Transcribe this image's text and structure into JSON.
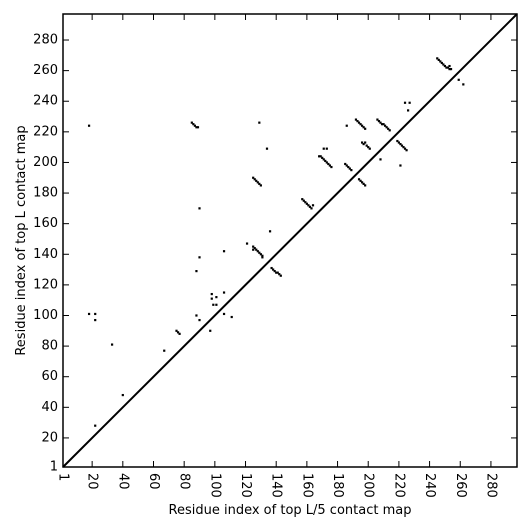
{
  "chart_data": {
    "type": "scatter",
    "xlabel": "Residue index of top L/5 contact map",
    "ylabel": "Residue index of top L contact map",
    "xlim": [
      1,
      297
    ],
    "ylim": [
      1,
      297
    ],
    "x_ticks": [
      1,
      20,
      40,
      60,
      80,
      100,
      120,
      140,
      160,
      180,
      200,
      220,
      240,
      260,
      280
    ],
    "x_tick_labels": [
      "1",
      "20",
      "40",
      "60",
      "80",
      "100",
      "120",
      "140",
      "160",
      "180",
      "200",
      "220",
      "240",
      "260",
      "280"
    ],
    "y_ticks": [
      1,
      20,
      40,
      60,
      80,
      100,
      120,
      140,
      160,
      180,
      200,
      220,
      240,
      260,
      280
    ],
    "y_tick_labels": [
      "1",
      "20",
      "40",
      "60",
      "80",
      "100",
      "120",
      "140",
      "160",
      "180",
      "200",
      "220",
      "240",
      "260",
      "280"
    ],
    "diagonal": [
      [
        1,
        1
      ],
      [
        297,
        297
      ]
    ],
    "grid": false,
    "marker_color": "#000000",
    "points": [
      [
        18,
        224
      ],
      [
        18,
        101
      ],
      [
        22,
        101
      ],
      [
        22,
        97
      ],
      [
        22,
        28
      ],
      [
        33,
        81
      ],
      [
        40,
        48
      ],
      [
        67,
        77
      ],
      [
        75,
        90
      ],
      [
        76,
        89
      ],
      [
        77,
        88
      ],
      [
        85,
        226
      ],
      [
        86,
        225
      ],
      [
        87,
        224
      ],
      [
        88,
        223
      ],
      [
        89,
        223
      ],
      [
        88,
        129
      ],
      [
        90,
        170
      ],
      [
        90,
        138
      ],
      [
        88,
        100
      ],
      [
        90,
        97
      ],
      [
        97,
        90
      ],
      [
        98,
        114
      ],
      [
        98,
        111
      ],
      [
        99,
        107
      ],
      [
        101,
        112
      ],
      [
        101,
        107
      ],
      [
        106,
        142
      ],
      [
        106,
        115
      ],
      [
        106,
        101
      ],
      [
        111,
        99
      ],
      [
        121,
        147
      ],
      [
        125,
        190
      ],
      [
        126,
        189
      ],
      [
        127,
        188
      ],
      [
        128,
        187
      ],
      [
        129,
        186
      ],
      [
        130,
        185
      ],
      [
        129,
        226
      ],
      [
        134,
        209
      ],
      [
        136,
        155
      ],
      [
        125,
        145
      ],
      [
        126,
        144
      ],
      [
        125,
        143
      ],
      [
        127,
        143
      ],
      [
        128,
        142
      ],
      [
        129,
        141
      ],
      [
        130,
        140
      ],
      [
        131,
        139
      ],
      [
        131,
        138
      ],
      [
        137,
        131
      ],
      [
        138,
        130
      ],
      [
        139,
        129
      ],
      [
        140,
        128
      ],
      [
        141,
        128
      ],
      [
        142,
        127
      ],
      [
        143,
        126
      ],
      [
        157,
        176
      ],
      [
        158,
        175
      ],
      [
        159,
        174
      ],
      [
        160,
        173
      ],
      [
        161,
        172
      ],
      [
        162,
        171
      ],
      [
        163,
        170
      ],
      [
        164,
        172
      ],
      [
        168,
        204
      ],
      [
        169,
        204
      ],
      [
        170,
        203
      ],
      [
        171,
        202
      ],
      [
        171,
        209
      ],
      [
        172,
        201
      ],
      [
        173,
        200
      ],
      [
        174,
        199
      ],
      [
        175,
        198
      ],
      [
        176,
        197
      ],
      [
        173,
        209
      ],
      [
        185,
        199
      ],
      [
        186,
        198
      ],
      [
        187,
        197
      ],
      [
        188,
        196
      ],
      [
        189,
        195
      ],
      [
        186,
        224
      ],
      [
        192,
        228
      ],
      [
        193,
        227
      ],
      [
        194,
        226
      ],
      [
        195,
        225
      ],
      [
        196,
        224
      ],
      [
        197,
        223
      ],
      [
        198,
        222
      ],
      [
        194,
        189
      ],
      [
        195,
        188
      ],
      [
        196,
        187
      ],
      [
        197,
        186
      ],
      [
        198,
        185
      ],
      [
        196,
        213
      ],
      [
        197,
        212
      ],
      [
        198,
        213
      ],
      [
        199,
        211
      ],
      [
        200,
        210
      ],
      [
        201,
        209
      ],
      [
        206,
        228
      ],
      [
        207,
        227
      ],
      [
        208,
        226
      ],
      [
        209,
        225
      ],
      [
        210,
        225
      ],
      [
        211,
        224
      ],
      [
        212,
        223
      ],
      [
        213,
        222
      ],
      [
        214,
        221
      ],
      [
        208,
        202
      ],
      [
        219,
        214
      ],
      [
        220,
        213
      ],
      [
        221,
        212
      ],
      [
        222,
        211
      ],
      [
        223,
        210
      ],
      [
        224,
        209
      ],
      [
        225,
        208
      ],
      [
        221,
        198
      ],
      [
        224,
        239
      ],
      [
        227,
        239
      ],
      [
        226,
        234
      ],
      [
        245,
        268
      ],
      [
        246,
        267
      ],
      [
        247,
        266
      ],
      [
        248,
        265
      ],
      [
        249,
        264
      ],
      [
        250,
        263
      ],
      [
        251,
        262
      ],
      [
        252,
        262
      ],
      [
        253,
        261
      ],
      [
        254,
        261
      ],
      [
        253,
        263
      ],
      [
        259,
        254
      ],
      [
        262,
        251
      ]
    ]
  }
}
